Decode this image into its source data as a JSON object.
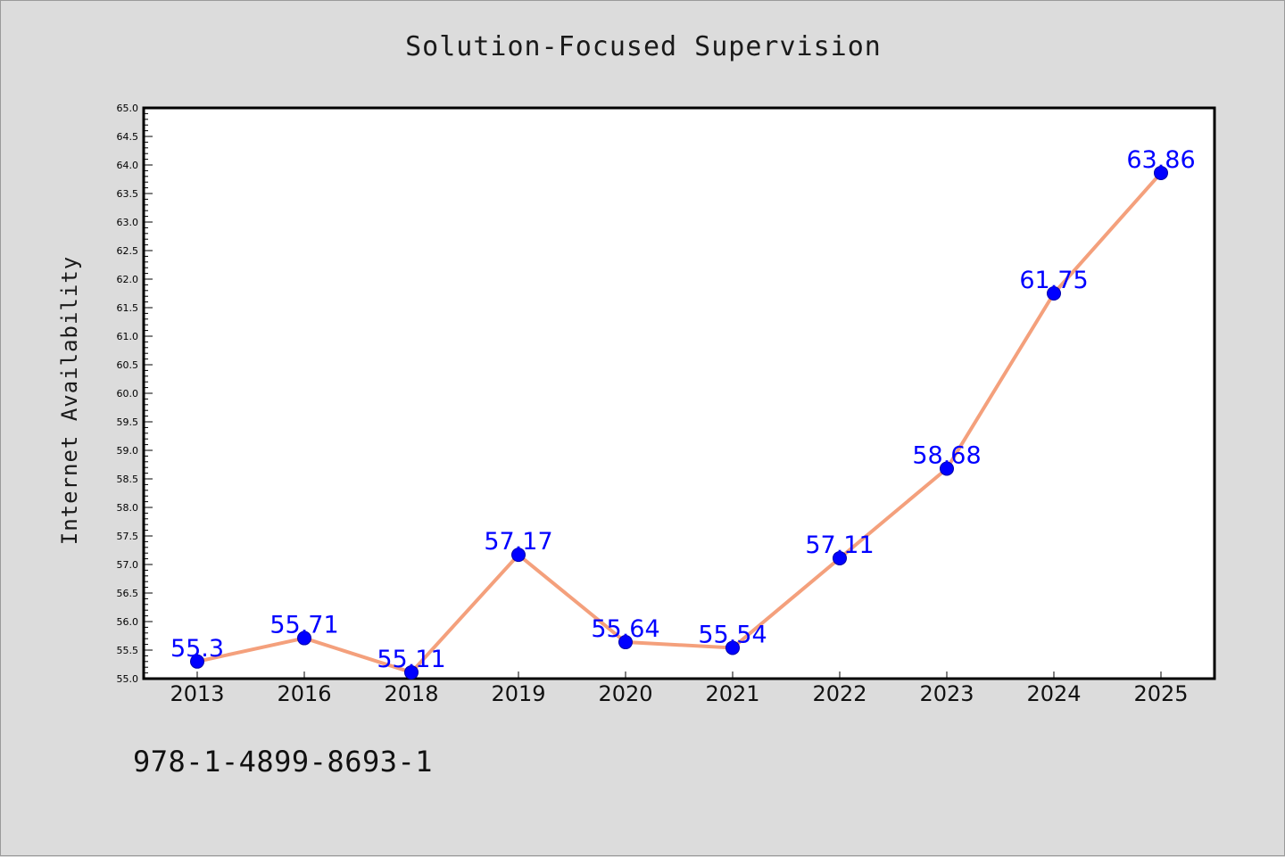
{
  "title": "Solution-Focused Supervision",
  "footnote": "978-1-4899-8693-1",
  "colors": {
    "background": "#dcdcdc",
    "plot_background": "#ffffff",
    "line": "#f4a07c",
    "marker": "#0000ff",
    "data_label": "#0000ff"
  },
  "chart_data": {
    "type": "line",
    "categories": [
      "2013",
      "2016",
      "2018",
      "2019",
      "2020",
      "2021",
      "2022",
      "2023",
      "2024",
      "2025"
    ],
    "values": [
      55.3,
      55.71,
      55.11,
      57.17,
      55.64,
      55.54,
      57.11,
      58.68,
      61.75,
      63.86
    ],
    "data_labels": [
      "55.3",
      "55.71",
      "55.11",
      "57.17",
      "55.64",
      "55.54",
      "57.11",
      "58.68",
      "61.75",
      "63.86"
    ],
    "title": "Solution-Focused Supervision",
    "xlabel": "",
    "ylabel": "Internet Availability",
    "ylim": [
      55.0,
      65.0
    ],
    "yticks": [
      "55.0",
      "55.5",
      "56.0",
      "56.5",
      "57.0",
      "57.5",
      "58.0",
      "58.5",
      "59.0",
      "59.5",
      "60.0",
      "60.5",
      "61.0",
      "61.5",
      "62.0",
      "62.5",
      "63.0",
      "63.5",
      "64.0",
      "64.5",
      "65.0"
    ],
    "grid": false,
    "legend": "none"
  }
}
